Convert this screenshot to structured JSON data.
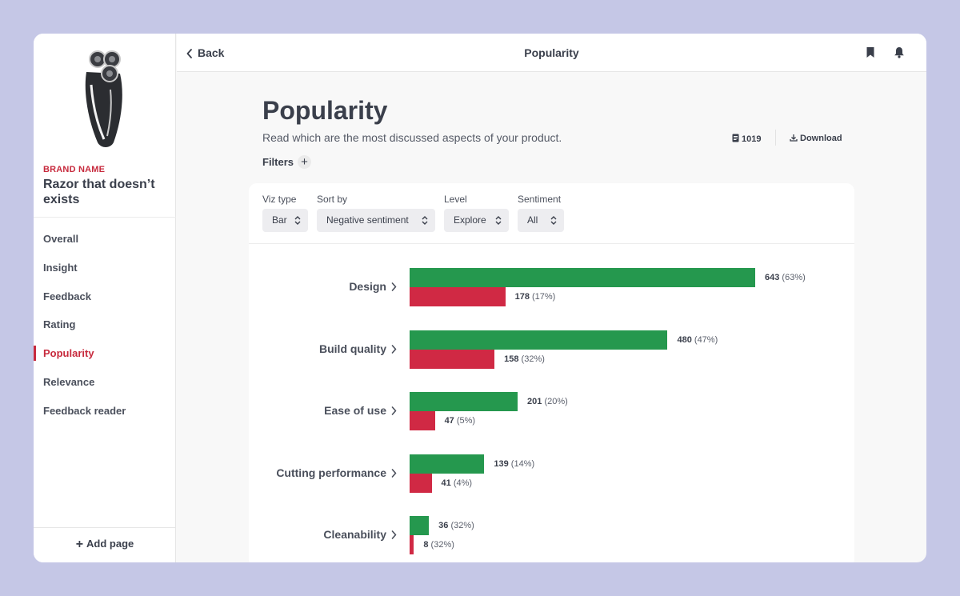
{
  "sidebar": {
    "brand_label": "BRAND NAME",
    "product_name": "Razor that doesn’t exists",
    "items": [
      {
        "label": "Overall",
        "active": false
      },
      {
        "label": "Insight",
        "active": false
      },
      {
        "label": "Feedback",
        "active": false
      },
      {
        "label": "Rating",
        "active": false
      },
      {
        "label": "Popularity",
        "active": true
      },
      {
        "label": "Relevance",
        "active": false
      },
      {
        "label": "Feedback reader",
        "active": false
      }
    ],
    "add_page_label": "Add page"
  },
  "topbar": {
    "back_label": "Back",
    "title": "Popularity",
    "icons": [
      "bookmark-icon",
      "bell-icon"
    ]
  },
  "header": {
    "title": "Popularity",
    "subtitle": "Read which are the most discussed aspects of your product.",
    "count": "1019",
    "download_label": "Download",
    "filters_label": "Filters"
  },
  "controls": {
    "viz_type": {
      "label": "Viz type",
      "value": "Bar"
    },
    "sort_by": {
      "label": "Sort by",
      "value": "Negative sentiment"
    },
    "level": {
      "label": "Level",
      "value": "Explore"
    },
    "sentiment": {
      "label": "Sentiment",
      "value": "All"
    }
  },
  "colors": {
    "accent": "#c72a3d",
    "positive": "#25984e",
    "negative": "#d02944",
    "background": "#c5c7e6"
  },
  "chart_data": {
    "type": "bar",
    "orientation": "horizontal",
    "categories": [
      "Design",
      "Build quality",
      "Ease of use",
      "Cutting performance",
      "Cleanability"
    ],
    "series": [
      {
        "values": [
          643,
          480,
          201,
          139,
          36
        ],
        "labels": [
          "(63%)",
          "(47%)",
          "(20%)",
          "(14%)",
          "(32%)"
        ],
        "color": "#25984e"
      },
      {
        "values": [
          178,
          158,
          47,
          41,
          8
        ],
        "labels": [
          "(17%)",
          "(32%)",
          "(5%)",
          "(4%)",
          "(32%)"
        ],
        "color": "#d02944"
      }
    ]
  }
}
